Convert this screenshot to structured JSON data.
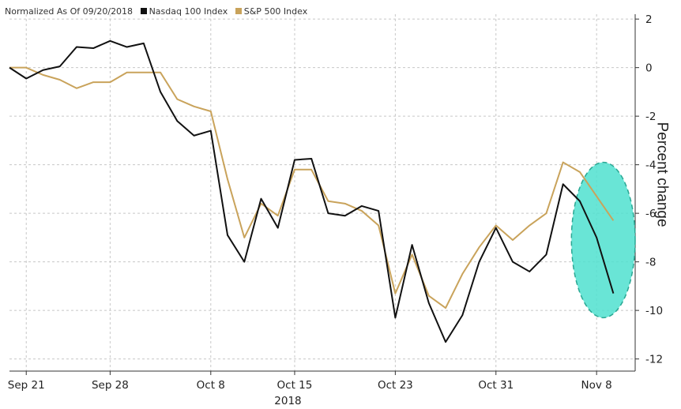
{
  "legend": {
    "prefix": "Normalized As Of 09/20/2018",
    "items": [
      {
        "label": "Nasdaq 100 Index",
        "color": "#111111"
      },
      {
        "label": "S&P 500 Index",
        "color": "#c9a35b"
      }
    ]
  },
  "chart_data": {
    "type": "line",
    "title": "",
    "xlabel": "2018",
    "ylabel": "Percent change",
    "ylim": [
      -12.5,
      2.2
    ],
    "y_ticks": [
      2,
      0,
      -2,
      -4,
      -6,
      -8,
      -10,
      -12
    ],
    "x_ticks": [
      {
        "label": "Sep 21",
        "x": 1
      },
      {
        "label": "Sep 28",
        "x": 6
      },
      {
        "label": "Oct 8",
        "x": 12
      },
      {
        "label": "Oct 15",
        "x": 17
      },
      {
        "label": "Oct 23",
        "x": 23
      },
      {
        "label": "Oct 31",
        "x": 29
      },
      {
        "label": "Nov 8",
        "x": 35
      }
    ],
    "x_range": [
      0,
      37.3
    ],
    "grid": true,
    "legend_position": "top-left",
    "series": [
      {
        "name": "Nasdaq 100 Index",
        "color": "#111111",
        "values": [
          0,
          -0.45,
          -0.1,
          0.05,
          0.85,
          0.8,
          1.1,
          0.85,
          1.0,
          -1.0,
          -2.2,
          -2.8,
          -2.6,
          -6.9,
          -8.0,
          -5.4,
          -6.6,
          -3.8,
          -3.75,
          -6.0,
          -6.1,
          -5.7,
          -5.9,
          -10.3,
          -7.3,
          -9.7,
          -11.3,
          -10.2,
          -8.0,
          -6.6,
          -8.0,
          -8.4,
          -7.7,
          -4.8,
          -5.5,
          -7.0,
          -9.3
        ]
      },
      {
        "name": "S&P 500 Index",
        "color": "#c9a35b",
        "values": [
          0,
          0.0,
          -0.3,
          -0.5,
          -0.85,
          -0.6,
          -0.6,
          -0.2,
          -0.2,
          -0.2,
          -1.3,
          -1.6,
          -1.8,
          -4.6,
          -7.0,
          -5.6,
          -6.1,
          -4.2,
          -4.2,
          -5.5,
          -5.6,
          -5.9,
          -6.5,
          -9.3,
          -7.7,
          -9.4,
          -9.9,
          -8.5,
          -7.4,
          -6.5,
          -7.1,
          -6.5,
          -6.0,
          -3.9,
          -4.3,
          -5.3,
          -6.3
        ]
      }
    ],
    "highlight": {
      "shape": "ellipse",
      "color": "#4fe0cf",
      "x_center": 35.4,
      "y_center": -7.1,
      "x_halfwidth": 1.9,
      "y_halfwidth": 3.2
    }
  }
}
